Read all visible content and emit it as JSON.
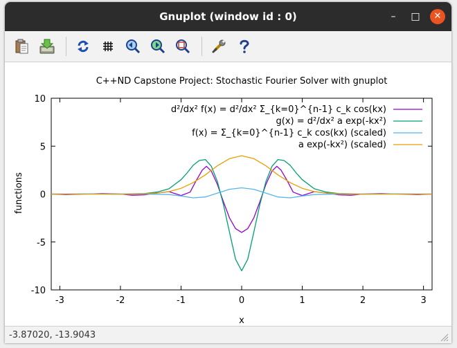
{
  "window": {
    "title": "Gnuplot (window id : 0)",
    "controls": {
      "minimize": "–",
      "maximize": "□",
      "close": "✕"
    }
  },
  "toolbar": {
    "buttons": [
      {
        "name": "copy-to-clipboard",
        "icon": "clipboard-icon"
      },
      {
        "name": "export",
        "icon": "export-icon"
      },
      {
        "name": "replot",
        "icon": "refresh-icon"
      },
      {
        "name": "toggle-grid",
        "icon": "grid-icon"
      },
      {
        "name": "previous-zoom",
        "icon": "zoom-previous-icon"
      },
      {
        "name": "next-zoom",
        "icon": "zoom-next-icon"
      },
      {
        "name": "autoscale",
        "icon": "zoom-autoscale-icon"
      },
      {
        "name": "configure",
        "icon": "wrench-icon"
      },
      {
        "name": "help",
        "icon": "help-icon"
      }
    ]
  },
  "status": {
    "coordinates": "-3.87020, -13.9043"
  },
  "chart_data": {
    "type": "line",
    "title": "C++ND Capstone Project: Stochastic Fourier Solver with gnuplot",
    "xlabel": "x",
    "ylabel": "functions",
    "xlim": [
      -3.14159,
      3.14159
    ],
    "ylim": [
      -10,
      10
    ],
    "xticks": [
      -3,
      -2,
      -1,
      0,
      1,
      2,
      3
    ],
    "yticks": [
      -10,
      -5,
      0,
      5,
      10
    ],
    "grid": false,
    "legend_position": "top-right",
    "series": [
      {
        "name": "d²/dx² f(x) = d²/dx² Σ_{k=0}^{n-1} c_k cos(kx)",
        "color": "#9400d3",
        "x": [
          -3.14159,
          -2.9,
          -2.6,
          -2.3,
          -2.0,
          -1.8,
          -1.6,
          -1.4,
          -1.2,
          -1.0,
          -0.85,
          -0.75,
          -0.65,
          -0.58,
          -0.5,
          -0.4,
          -0.3,
          -0.2,
          -0.1,
          0.0,
          0.1,
          0.2,
          0.3,
          0.4,
          0.5,
          0.58,
          0.65,
          0.75,
          0.85,
          1.0,
          1.2,
          1.4,
          1.6,
          1.8,
          2.0,
          2.3,
          2.6,
          2.9,
          3.14159
        ],
        "y": [
          0.0,
          -0.05,
          0.0,
          0.05,
          0.0,
          -0.12,
          -0.08,
          0.1,
          0.25,
          -0.15,
          0.2,
          1.4,
          2.5,
          2.9,
          2.4,
          1.0,
          -0.8,
          -2.5,
          -3.6,
          -4.0,
          -3.6,
          -2.5,
          -0.8,
          1.0,
          2.4,
          2.9,
          2.5,
          1.4,
          0.2,
          -0.15,
          0.25,
          0.1,
          -0.08,
          -0.12,
          0.0,
          0.05,
          0.0,
          -0.05,
          0.0
        ]
      },
      {
        "name": "g(x) = d²/dx² a exp(-kx²)",
        "color": "#009e73",
        "x": [
          -3.14159,
          -2.5,
          -2.0,
          -1.6,
          -1.4,
          -1.2,
          -1.0,
          -0.9,
          -0.8,
          -0.7,
          -0.6,
          -0.5,
          -0.4,
          -0.3,
          -0.2,
          -0.1,
          0.0,
          0.1,
          0.2,
          0.3,
          0.4,
          0.5,
          0.6,
          0.7,
          0.8,
          0.9,
          1.0,
          1.2,
          1.4,
          1.6,
          2.0,
          2.5,
          3.14159
        ],
        "y": [
          0.0,
          0.0,
          0.0,
          0.05,
          0.2,
          0.55,
          1.5,
          2.2,
          3.0,
          3.5,
          3.6,
          2.9,
          1.3,
          -1.1,
          -4.0,
          -6.8,
          -8.0,
          -6.8,
          -4.0,
          -1.1,
          1.3,
          2.9,
          3.6,
          3.5,
          3.0,
          2.2,
          1.5,
          0.55,
          0.2,
          0.05,
          0.0,
          0.0,
          0.0
        ]
      },
      {
        "name": "f(x) = Σ_{k=0}^{n-1} c_k cos(kx) (scaled)",
        "color": "#56b4e9",
        "x": [
          -3.14159,
          -2.5,
          -2.0,
          -1.6,
          -1.2,
          -1.0,
          -0.8,
          -0.6,
          -0.4,
          -0.2,
          0.0,
          0.2,
          0.4,
          0.6,
          0.8,
          1.0,
          1.2,
          1.6,
          2.0,
          2.5,
          3.14159
        ],
        "y": [
          0.0,
          0.02,
          -0.02,
          0.0,
          -0.05,
          -0.2,
          -0.4,
          -0.3,
          0.1,
          0.5,
          0.65,
          0.5,
          0.1,
          -0.3,
          -0.4,
          -0.2,
          -0.05,
          0.0,
          -0.02,
          0.02,
          0.0
        ]
      },
      {
        "name": "a exp(-kx²) (scaled)",
        "color": "#e69f00",
        "x": [
          -3.14159,
          -2.0,
          -1.6,
          -1.4,
          -1.2,
          -1.0,
          -0.8,
          -0.6,
          -0.4,
          -0.2,
          0.0,
          0.2,
          0.4,
          0.6,
          0.8,
          1.0,
          1.2,
          1.4,
          1.6,
          2.0,
          3.14159
        ],
        "y": [
          0.0,
          0.0,
          0.03,
          0.1,
          0.25,
          0.6,
          1.2,
          2.0,
          2.95,
          3.7,
          4.0,
          3.7,
          2.95,
          2.0,
          1.2,
          0.6,
          0.25,
          0.1,
          0.03,
          0.0,
          0.0
        ]
      }
    ]
  }
}
